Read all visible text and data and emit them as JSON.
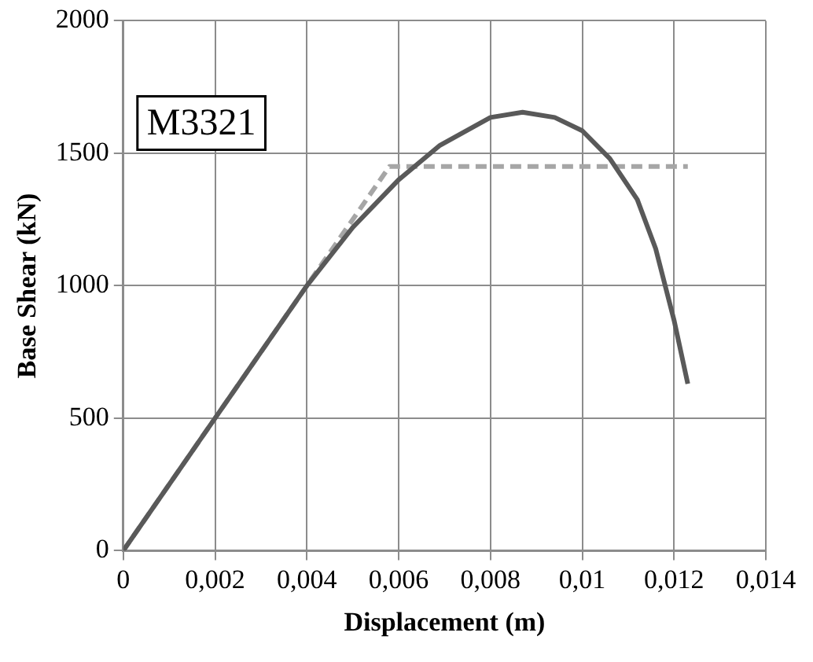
{
  "chart_data": {
    "type": "line",
    "xlabel": "Displacement (m)",
    "ylabel": "Base Shear (kN)",
    "annotations": [
      "M3321"
    ],
    "xlim": [
      0,
      0.014
    ],
    "xticks": [
      0,
      {
        "value": 0.002,
        "label": "0,002"
      },
      {
        "value": 0.004,
        "label": "0,004"
      },
      {
        "value": 0.006,
        "label": "0,006"
      },
      {
        "value": 0.008,
        "label": "0,008"
      },
      {
        "value": 0.01,
        "label": "0,01"
      },
      {
        "value": 0.012,
        "label": "0,012"
      },
      {
        "value": 0.014,
        "label": "0,014"
      }
    ],
    "ylim": [
      0,
      2000
    ],
    "yticks": [
      0,
      500,
      1000,
      1500,
      2000
    ],
    "grid": true,
    "legend": false,
    "marker": "none",
    "series": [
      {
        "color": "#595959",
        "line_style": "solid",
        "x": [
          0,
          0.002,
          0.004,
          0.005,
          0.006,
          0.0069,
          0.008,
          0.0087,
          0.0094,
          0.01,
          0.0106,
          0.0112,
          0.0116,
          0.012,
          0.0123
        ],
        "values": [
          0,
          500,
          1000,
          1220,
          1400,
          1530,
          1635,
          1655,
          1635,
          1585,
          1480,
          1325,
          1140,
          870,
          630
        ]
      },
      {
        "color": "#a6a6a6",
        "line_style": "dashed",
        "x": [
          0,
          0.0058,
          0.0123
        ],
        "values": [
          0,
          1450,
          1450
        ]
      }
    ]
  }
}
